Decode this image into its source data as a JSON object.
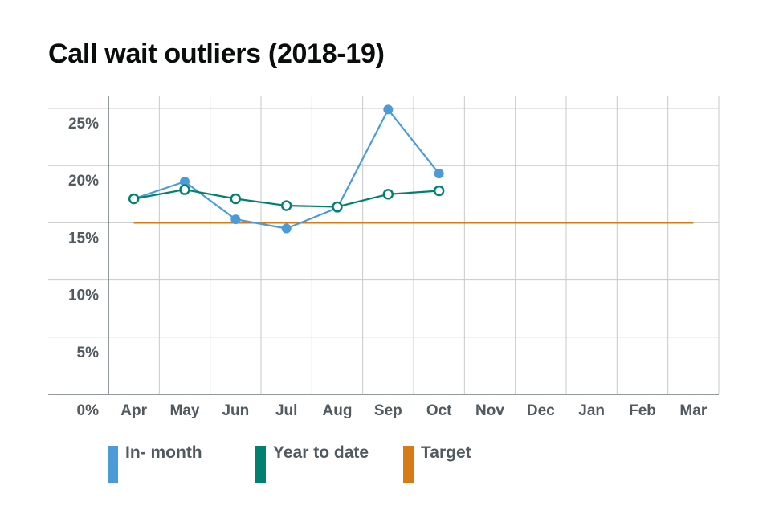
{
  "chart_data": {
    "type": "line",
    "title": "Call wait outliers (2018-19)",
    "xlabel": "",
    "ylabel": "",
    "ylim": [
      0,
      25
    ],
    "y_ticks": [
      "0%",
      "5%",
      "10%",
      "15%",
      "20%",
      "25%"
    ],
    "y_tick_values": [
      0,
      5,
      10,
      15,
      20,
      25
    ],
    "categories": [
      "Apr",
      "May",
      "Jun",
      "Jul",
      "Aug",
      "Sep",
      "Oct",
      "Nov",
      "Dec",
      "Jan",
      "Feb",
      "Mar"
    ],
    "grid": true,
    "legend_position": "bottom",
    "series": [
      {
        "name": "In- month",
        "color": "#4c9bd9",
        "marker": "filled",
        "values": [
          17.1,
          18.6,
          15.3,
          14.5,
          16.3,
          24.9,
          19.3,
          null,
          null,
          null,
          null,
          null
        ]
      },
      {
        "name": "Year to date",
        "color": "#00806e",
        "marker": "open",
        "values": [
          17.1,
          17.9,
          17.1,
          16.5,
          16.4,
          17.5,
          17.8,
          null,
          null,
          null,
          null,
          null
        ]
      },
      {
        "name": "Target",
        "color": "#d77b15",
        "marker": "none",
        "values": [
          15,
          15,
          15,
          15,
          15,
          15,
          15,
          15,
          15,
          15,
          15,
          15
        ]
      }
    ]
  }
}
